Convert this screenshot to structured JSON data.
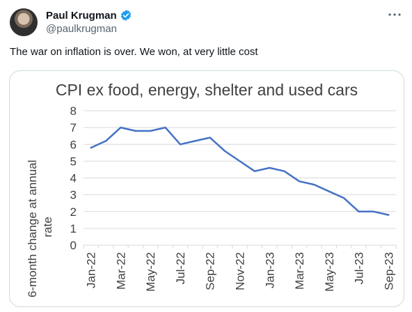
{
  "author": {
    "display_name": "Paul Krugman",
    "handle": "@paulkrugman"
  },
  "tweet": {
    "text": "The war on inflation is over. We won, at very little cost"
  },
  "icons": {
    "avatar": "profile-photo",
    "verified": "verified-badge-icon",
    "more": "more-options-icon"
  },
  "colors": {
    "verified": "#1d9bf0",
    "line": "#4472c4",
    "grid": "#d9d9d9",
    "text_muted": "#536471"
  },
  "chart_data": {
    "type": "line",
    "title": "CPI ex food, energy, shelter and used cars",
    "ylabel": "6-month change at annual rate",
    "xlabel": "",
    "ylim": [
      0,
      8
    ],
    "yticks": [
      "0",
      "1",
      "2",
      "3",
      "4",
      "5",
      "6",
      "7",
      "8"
    ],
    "x": [
      "Jan-22",
      "Feb-22",
      "Mar-22",
      "Apr-22",
      "May-22",
      "Jun-22",
      "Jul-22",
      "Aug-22",
      "Sep-22",
      "Oct-22",
      "Nov-22",
      "Dec-22",
      "Jan-23",
      "Feb-23",
      "Mar-23",
      "Apr-23",
      "May-23",
      "Jun-23",
      "Jul-23",
      "Aug-23",
      "Sep-23"
    ],
    "xtick_labels": [
      "Jan-22",
      "Mar-22",
      "May-22",
      "Jul-22",
      "Sep-22",
      "Nov-22",
      "Jan-23",
      "Mar-23",
      "May-23",
      "Jul-23",
      "Sep-23"
    ],
    "series": [
      {
        "values": [
          5.8,
          6.2,
          7.0,
          6.8,
          6.8,
          7.0,
          6.0,
          6.2,
          6.4,
          5.6,
          5.0,
          4.4,
          4.6,
          4.4,
          3.8,
          3.6,
          3.2,
          2.8,
          2.0,
          2.0,
          1.8
        ]
      }
    ],
    "grid": true,
    "legend": "none"
  }
}
